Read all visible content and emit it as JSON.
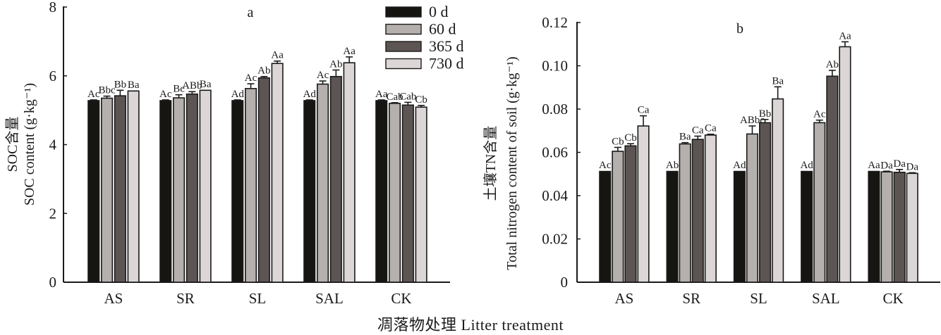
{
  "colors": {
    "0 d": "#171512",
    "60 d": "#b5b0ad",
    "365 d": "#5d5553",
    "730 d": "#dcd6d6",
    "axis": "#1a1a1a"
  },
  "x_title": "凋落物处理 Litter treatment",
  "chart_data": [
    {
      "type": "bar",
      "panel_label": "a",
      "title": "",
      "xlabel": "凋落物处理 Litter treatment",
      "ylabel_zh": "SOC含量",
      "ylabel_en": "SOC content (g·kg⁻¹)",
      "ylim": [
        0,
        8
      ],
      "yticks": [
        0,
        2,
        4,
        6,
        8
      ],
      "ytick_labels": [
        "0",
        "2",
        "4",
        "6",
        "8"
      ],
      "grid": false,
      "legend": {
        "position": "top-right",
        "entries": [
          "0 d",
          "60 d",
          "365 d",
          "730 d"
        ]
      },
      "categories": [
        "AS",
        "SR",
        "SL",
        "SAL",
        "CK"
      ],
      "series": [
        {
          "name": "0 d",
          "values": [
            5.28,
            5.28,
            5.28,
            5.28,
            5.28
          ],
          "errors": [
            0.02,
            0.02,
            0.02,
            0.02,
            0.02
          ],
          "labels": [
            "Ac",
            "Ac",
            "Ad",
            "Ad",
            "Aa"
          ]
        },
        {
          "name": "60 d",
          "values": [
            5.35,
            5.36,
            5.63,
            5.76,
            5.2
          ],
          "errors": [
            0.06,
            0.09,
            0.14,
            0.09,
            0.02
          ],
          "labels": [
            "Bbc",
            "Bc",
            "Ac",
            "Ac",
            "Cab"
          ]
        },
        {
          "name": "365 d",
          "values": [
            5.42,
            5.47,
            5.94,
            5.98,
            5.15
          ],
          "errors": [
            0.16,
            0.07,
            0.04,
            0.19,
            0.08
          ],
          "labels": [
            "Bb",
            "ABb",
            "Ab",
            "Ab",
            "Cab"
          ]
        },
        {
          "name": "730 d",
          "values": [
            5.56,
            5.58,
            6.36,
            6.38,
            5.09
          ],
          "errors": [
            0.01,
            0.01,
            0.07,
            0.17,
            0.05
          ],
          "labels": [
            "Ba",
            "Ba",
            "Aa",
            "Aa",
            "Cb"
          ]
        }
      ]
    },
    {
      "type": "bar",
      "panel_label": "b",
      "title": "",
      "xlabel": "凋落物处理 Litter treatment",
      "ylabel_zh": "土壤TN含量",
      "ylabel_en": "Total nitrogen content of soil (g·kg⁻¹)",
      "ylim": [
        0,
        0.12
      ],
      "yticks": [
        0,
        0.02,
        0.04,
        0.06,
        0.08,
        0.1,
        0.12
      ],
      "ytick_labels": [
        "0",
        "0.02",
        "0.04",
        "0.06",
        "0.08",
        "0.10",
        "0.12"
      ],
      "grid": false,
      "categories": [
        "AS",
        "SR",
        "SL",
        "SAL",
        "CK"
      ],
      "series": [
        {
          "name": "0 d",
          "values": [
            0.0512,
            0.0512,
            0.0512,
            0.0512,
            0.0512
          ],
          "errors": [
            0.0002,
            0.0002,
            0.0002,
            0.0002,
            0.0002
          ],
          "labels": [
            "Ac",
            "Ab",
            "Ad",
            "Ad",
            "Aa"
          ]
        },
        {
          "name": "60 d",
          "values": [
            0.0605,
            0.0639,
            0.0685,
            0.0737,
            0.051
          ],
          "errors": [
            0.0018,
            0.0006,
            0.0037,
            0.0012,
            0.0003
          ],
          "labels": [
            "Cb",
            "Ba",
            "ABbc",
            "Ac",
            "Da"
          ]
        },
        {
          "name": "365 d",
          "values": [
            0.063,
            0.066,
            0.0737,
            0.0952,
            0.0508
          ],
          "errors": [
            0.001,
            0.0015,
            0.0015,
            0.0027,
            0.0013
          ],
          "labels": [
            "Cb",
            "Ca",
            "Bb",
            "Ab",
            "Da"
          ]
        },
        {
          "name": "730 d",
          "values": [
            0.0722,
            0.068,
            0.0847,
            0.1088,
            0.0503
          ],
          "errors": [
            0.0047,
            0.0004,
            0.0056,
            0.0023,
            0.0003
          ],
          "labels": [
            "Ca",
            "Ca",
            "Ba",
            "Aa",
            "Da"
          ]
        }
      ]
    }
  ]
}
